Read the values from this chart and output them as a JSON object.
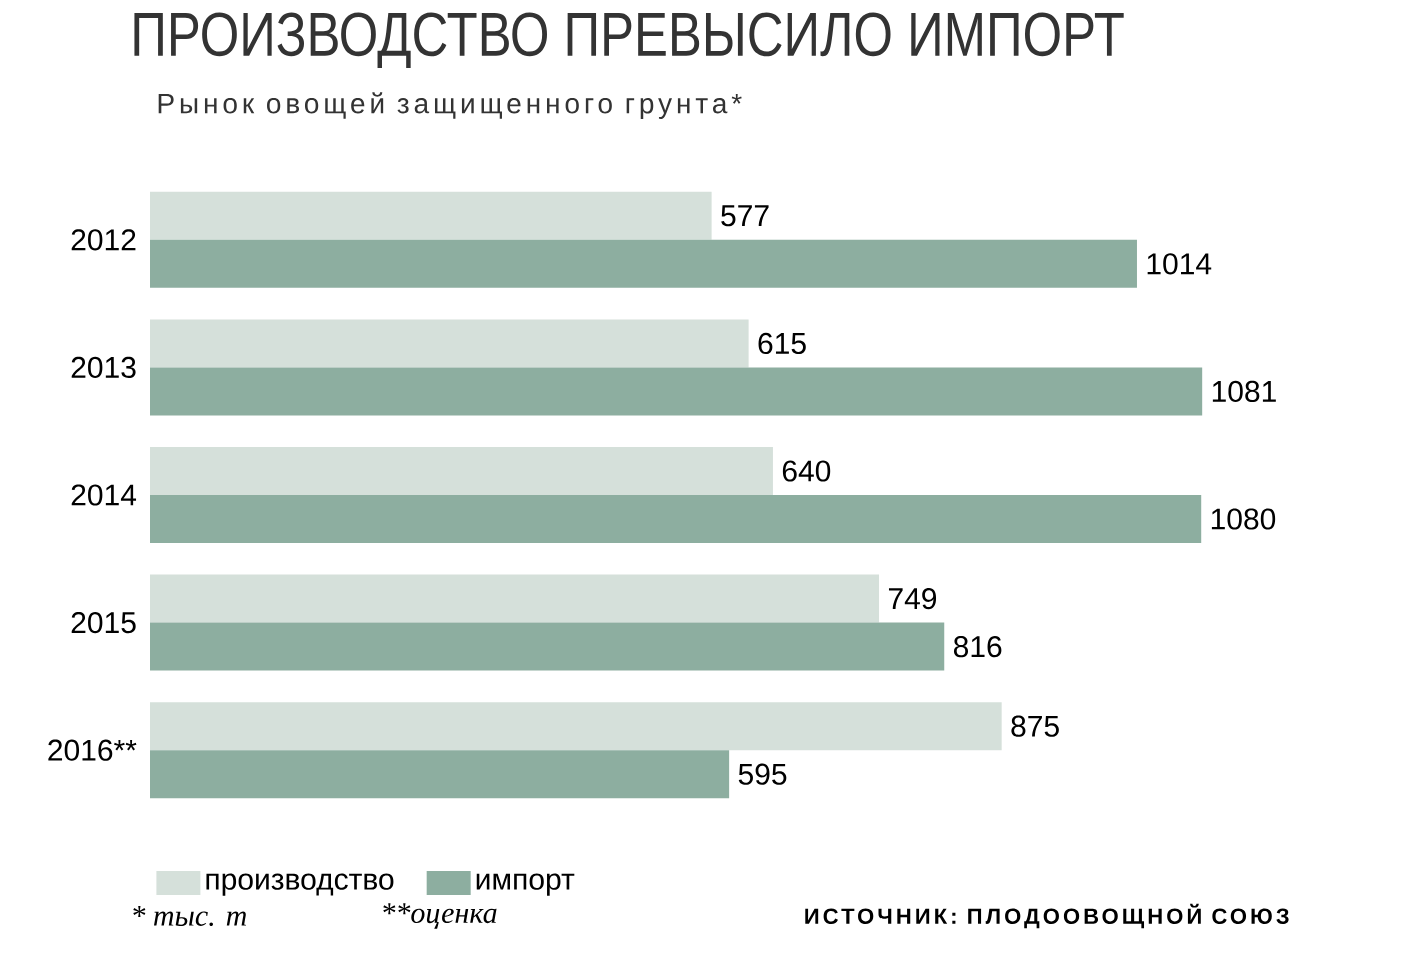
{
  "chart_data": {
    "type": "bar",
    "orientation": "horizontal",
    "title": "ПРОИЗВОДСТВО ПРЕВЫСИЛО ИМПОРТ",
    "subtitle": "Рынок овощей защищенного грунта*",
    "categories": [
      "2012",
      "2013",
      "2014",
      "2015",
      "2016**"
    ],
    "series": [
      {
        "name": "производство",
        "color": "#d5e0da",
        "values": [
          577,
          615,
          640,
          749,
          875
        ]
      },
      {
        "name": "импорт",
        "color": "#8daea0",
        "values": [
          1014,
          1081,
          1080,
          816,
          595
        ]
      }
    ],
    "data_labels": true,
    "legend": "bottom left",
    "annotations": [
      "* тыс. т",
      "**оценка",
      "ИСТОЧНИК: ПЛОДООВОЩНОЙ СОЮЗ"
    ]
  }
}
